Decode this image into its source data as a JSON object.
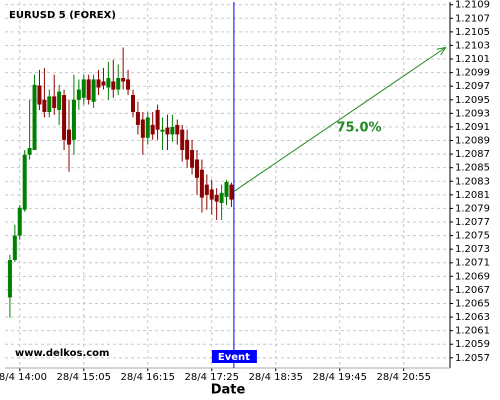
{
  "chart_data": {
    "type": "candlestick",
    "title": "EURUSD 5 (FOREX)",
    "watermark": "www.delkos.com",
    "x_label": "Date",
    "up_color": "#008000",
    "down_color": "#8b0000",
    "grid": true,
    "open": [
      1.20659,
      1.20714,
      1.2075,
      1.20788,
      1.20869,
      1.20876,
      1.20971,
      1.2095,
      1.20932,
      1.20955,
      1.20935,
      1.20957,
      1.20906,
      1.20891,
      1.2095,
      1.20953,
      1.2098,
      1.20947,
      1.2098,
      1.20977,
      1.20968,
      1.20977,
      1.20965,
      1.20982,
      1.2098,
      1.20957,
      1.20932,
      1.20921,
      1.20894,
      1.20913,
      1.20935,
      1.20903,
      1.20909,
      1.20899,
      1.20913,
      1.20906,
      1.20891,
      1.20876,
      1.20862,
      1.20847,
      1.20825,
      1.20818,
      1.2081,
      1.20798,
      1.20807,
      1.20825
    ],
    "high": [
      1.20722,
      1.20766,
      1.20795,
      1.20876,
      1.2095,
      1.20987,
      1.20994,
      1.20997,
      1.20965,
      1.20987,
      1.20972,
      1.20965,
      1.2095,
      1.20987,
      1.2098,
      1.20987,
      1.20987,
      1.20987,
      1.20994,
      1.20997,
      1.21006,
      1.21009,
      1.21002,
      1.21027,
      1.20994,
      1.20965,
      1.20947,
      1.20932,
      1.20932,
      1.20932,
      1.20943,
      1.20924,
      1.20928,
      1.20928,
      1.20921,
      1.20913,
      1.20906,
      1.20891,
      1.20876,
      1.20862,
      1.2084,
      1.20832,
      1.2082,
      1.20825,
      1.20832,
      1.20828
    ],
    "low": [
      1.20629,
      1.20711,
      1.20744,
      1.20785,
      1.20862,
      1.20876,
      1.20935,
      1.20924,
      1.20924,
      1.20928,
      1.20913,
      1.20876,
      1.20844,
      1.20869,
      1.20935,
      1.20943,
      1.20943,
      1.20938,
      1.20957,
      1.20965,
      1.2095,
      1.20953,
      1.20957,
      1.20965,
      1.20957,
      1.20924,
      1.20899,
      1.20869,
      1.20884,
      1.20891,
      1.20891,
      1.20876,
      1.20876,
      1.20888,
      1.20884,
      1.20859,
      1.2085,
      1.2084,
      1.2081,
      1.20784,
      1.20788,
      1.20781,
      1.20773,
      1.20773,
      1.20795,
      1.20792
    ],
    "close": [
      1.20714,
      1.2075,
      1.20791,
      1.20869,
      1.20879,
      1.20972,
      1.20943,
      1.20932,
      1.20955,
      1.20938,
      1.20962,
      1.20891,
      1.20884,
      1.2095,
      1.20965,
      1.2098,
      1.2095,
      1.2098,
      1.20968,
      1.20971,
      1.20982,
      1.20965,
      1.20982,
      1.20977,
      1.20965,
      1.20932,
      1.20913,
      1.20894,
      1.20924,
      1.20899,
      1.20906,
      1.20906,
      1.20899,
      1.2091,
      1.20899,
      1.20876,
      1.20862,
      1.2085,
      1.20835,
      1.20806,
      1.2081,
      1.20803,
      1.208,
      1.20813,
      1.20829,
      1.20803
    ],
    "xlim": [
      -1,
      89.4
    ],
    "xticks": [
      {
        "value": 2,
        "label": "28/4 14:00"
      },
      {
        "value": 15,
        "label": "28/4 15:05"
      },
      {
        "value": 28,
        "label": "28/4 16:15"
      },
      {
        "value": 41,
        "label": "28/4 17:25"
      },
      {
        "value": 54,
        "label": "28/4 18:35"
      },
      {
        "value": 67,
        "label": "28/4 19:45"
      },
      {
        "value": 80,
        "label": "28/4 20:55"
      }
    ],
    "ylim": [
      1.20555,
      1.21094
    ],
    "yticks": [
      1.2057,
      1.2059,
      1.2061,
      1.2063,
      1.2065,
      1.2067,
      1.2069,
      1.2071,
      1.2073,
      1.2075,
      1.2077,
      1.2079,
      1.2081,
      1.2083,
      1.2085,
      1.2087,
      1.2089,
      1.2091,
      1.2093,
      1.2095,
      1.2097,
      1.2099,
      1.2101,
      1.2103,
      1.2105,
      1.2107,
      1.2109
    ],
    "event": {
      "label": "Event",
      "x": 45.5,
      "color": "#0000ff"
    },
    "projection": {
      "x": [
        45.5,
        88.5
      ],
      "y": [
        1.20815,
        1.21027
      ],
      "label": "75.0%",
      "color": "#228b22"
    }
  }
}
